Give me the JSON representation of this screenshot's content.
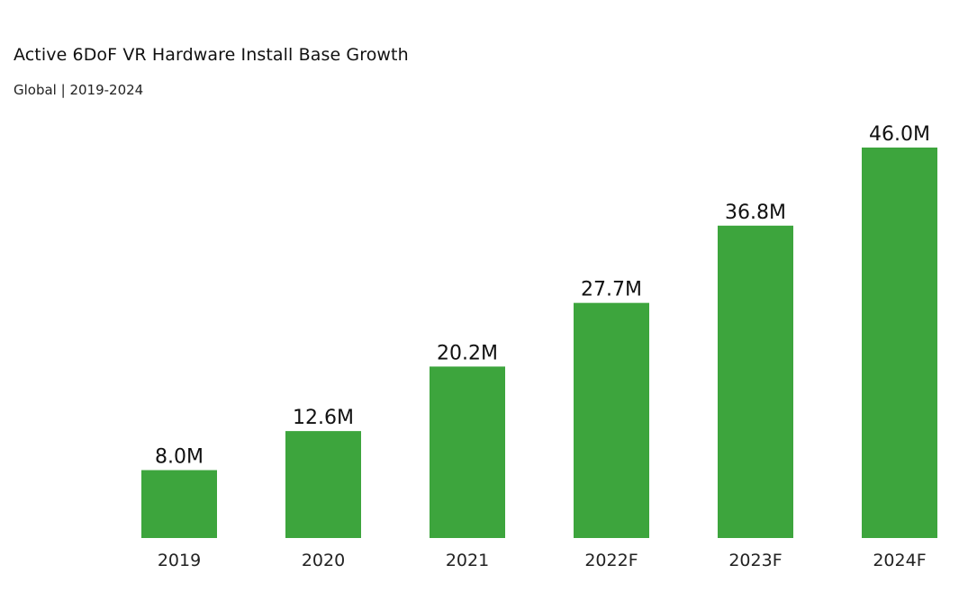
{
  "chart_data": {
    "type": "bar",
    "title": "Active 6DoF VR Hardware Install Base Growth",
    "subtitle": "Global | 2019-2024",
    "categories": [
      "2019",
      "2020",
      "2021",
      "2022F",
      "2023F",
      "2024F"
    ],
    "values": [
      8.0,
      12.6,
      20.2,
      27.7,
      36.8,
      46.0
    ],
    "data_labels": [
      "8.0M",
      "12.6M",
      "20.2M",
      "27.7M",
      "36.8M",
      "46.0M"
    ],
    "xlabel": "",
    "ylabel": "",
    "ylim": [
      0,
      46.0
    ],
    "grid": false,
    "bar_color": "#3da53d"
  }
}
